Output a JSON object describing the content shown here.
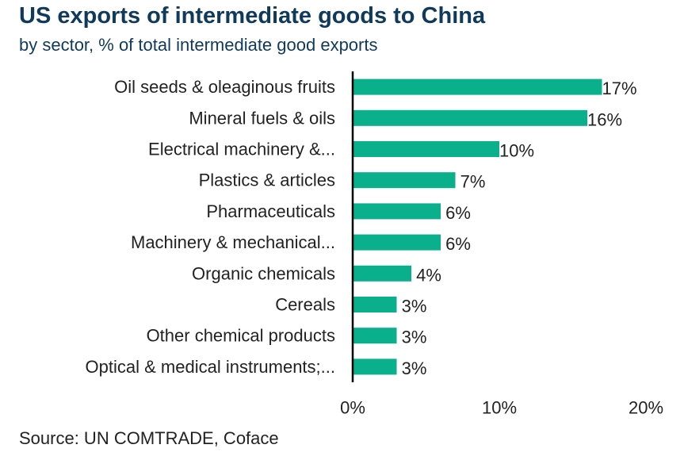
{
  "chart_data": {
    "type": "bar",
    "orientation": "horizontal",
    "title": "US exports of intermediate goods to China",
    "subtitle": "by sector, % of total intermediate good exports",
    "categories": [
      "Oil seeds & oleaginous fruits",
      "Mineral fuels & oils",
      "Electrical machinery &...",
      "Plastics & articles",
      "Pharmaceuticals",
      "Machinery & mechanical...",
      "Organic chemicals",
      "Cereals",
      "Other chemical products",
      "Optical & medical instruments;..."
    ],
    "values": [
      17,
      16,
      10,
      7,
      6,
      6,
      4,
      3,
      3,
      3
    ],
    "value_labels": [
      "17%",
      "16%",
      "10%",
      "7%",
      "6%",
      "6%",
      "4%",
      "3%",
      "3%",
      "3%"
    ],
    "x_ticks": [
      0,
      10,
      20
    ],
    "x_tick_labels": [
      "0%",
      "10%",
      "20%"
    ],
    "xlim": [
      0,
      20
    ],
    "grid": false,
    "bar_color": "#0aaf8c",
    "source": "Source: UN COMTRADE, Coface"
  }
}
